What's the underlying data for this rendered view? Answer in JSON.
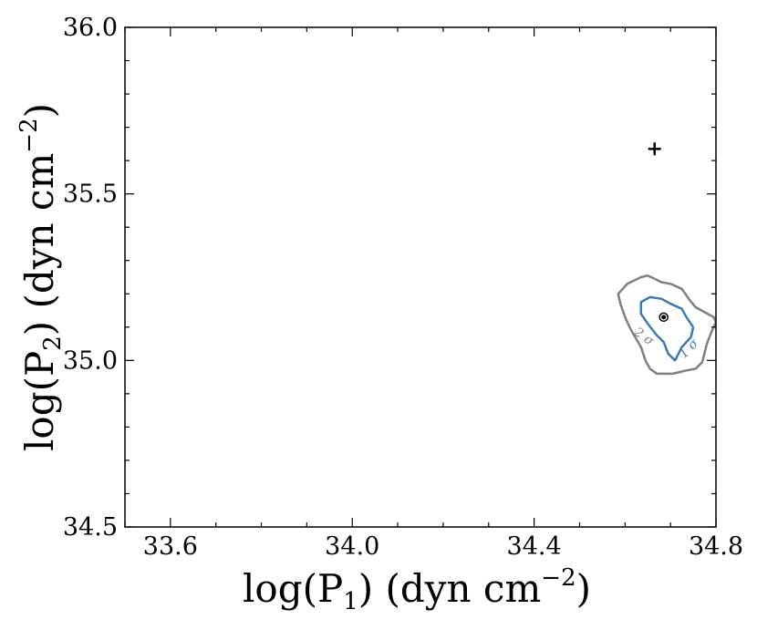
{
  "chart_data": {
    "type": "scatter",
    "xlabel": "log(P_1) (dyn cm^-2)",
    "ylabel": "log(P_2) (dyn cm^-2)",
    "xlim": [
      33.5,
      34.8
    ],
    "ylim": [
      34.5,
      36.0
    ],
    "x_ticks": [
      33.6,
      34.0,
      34.4,
      34.8
    ],
    "x_tick_labels": [
      "33.6",
      "34.0",
      "34.4",
      "34.8"
    ],
    "y_ticks": [
      34.5,
      35.0,
      35.5,
      36.0
    ],
    "y_tick_labels": [
      "34.5",
      "35.0",
      "35.5",
      "36.0"
    ],
    "grid": false,
    "minor_ticks": true,
    "ticks_direction": "in",
    "ticks_on_all_sides": true,
    "markers": [
      {
        "kind": "plus",
        "x": 34.665,
        "y": 35.635,
        "color": "#000000"
      },
      {
        "kind": "dot",
        "x": 34.685,
        "y": 35.13,
        "color": "#000000"
      }
    ],
    "contours": [
      {
        "label": "2 σ",
        "color": "#808080",
        "points": [
          [
            34.77,
            34.995
          ],
          [
            34.755,
            34.975
          ],
          [
            34.735,
            34.97
          ],
          [
            34.72,
            34.965
          ],
          [
            34.705,
            34.96
          ],
          [
            34.67,
            34.96
          ],
          [
            34.655,
            34.975
          ],
          [
            34.645,
            35.0
          ],
          [
            34.635,
            35.04
          ],
          [
            34.62,
            35.075
          ],
          [
            34.61,
            35.1
          ],
          [
            34.6,
            35.13
          ],
          [
            34.59,
            35.17
          ],
          [
            34.585,
            35.2
          ],
          [
            34.605,
            35.23
          ],
          [
            34.635,
            35.25
          ],
          [
            34.65,
            35.255
          ],
          [
            34.665,
            35.245
          ],
          [
            34.68,
            35.235
          ],
          [
            34.7,
            35.23
          ],
          [
            34.725,
            35.215
          ],
          [
            34.74,
            35.185
          ],
          [
            34.755,
            35.16
          ],
          [
            34.775,
            35.145
          ],
          [
            34.795,
            35.13
          ],
          [
            34.8,
            35.115
          ],
          [
            34.79,
            35.085
          ],
          [
            34.78,
            35.05
          ],
          [
            34.77,
            34.995
          ]
        ]
      },
      {
        "label": "1 σ",
        "color": "#3a7ab5",
        "points": [
          [
            34.75,
            35.1
          ],
          [
            34.735,
            35.13
          ],
          [
            34.725,
            35.155
          ],
          [
            34.7,
            35.17
          ],
          [
            34.68,
            35.185
          ],
          [
            34.655,
            35.19
          ],
          [
            34.635,
            35.175
          ],
          [
            34.635,
            35.14
          ],
          [
            34.65,
            35.11
          ],
          [
            34.67,
            35.075
          ],
          [
            34.685,
            35.055
          ],
          [
            34.695,
            35.02
          ],
          [
            34.71,
            35.0
          ],
          [
            34.725,
            35.04
          ],
          [
            34.745,
            35.07
          ],
          [
            34.75,
            35.1
          ]
        ]
      }
    ]
  }
}
